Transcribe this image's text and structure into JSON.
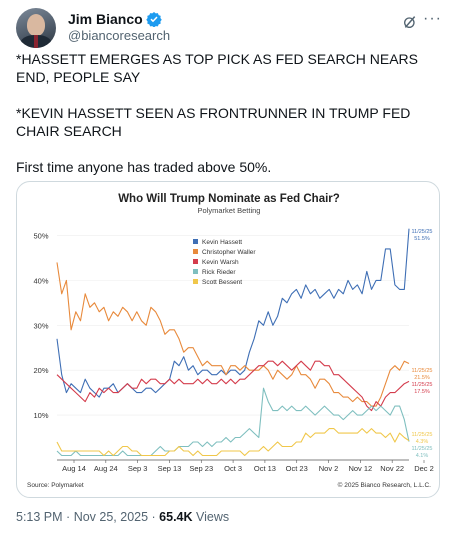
{
  "author": {
    "display_name": "Jim Bianco",
    "handle": "@biancoresearch"
  },
  "tweet": {
    "paragraphs": [
      "*HASSETT EMERGES AS TOP PICK AS FED SEARCH NEARS END, PEOPLE SAY",
      "*KEVIN HASSETT SEEN AS FRONTRUNNER IN TRUMP FED CHAIR SEARCH",
      "First time anyone has traded above 50%."
    ],
    "time": "5:13 PM",
    "date": "Nov 25, 2025",
    "views": "65.4K",
    "views_label": "Views"
  },
  "icons": {
    "verified": "verified-badge-icon",
    "grok": "grok-icon",
    "more": "more-icon"
  },
  "chart_data": {
    "type": "line",
    "title": "Who Will Trump Nominate as Fed Chair?",
    "subtitle": "Polymarket Betting",
    "source": "Source: Polymarket",
    "copyright": "© 2025 Bianco Research, L.L.C.",
    "y_ticks": [
      "10%",
      "20%",
      "30%",
      "40%",
      "50%"
    ],
    "x_ticks": [
      "Aug 14",
      "Aug 24",
      "Sep 3",
      "Sep 13",
      "Sep 23",
      "Oct 3",
      "Oct 13",
      "Oct 23",
      "Nov 2",
      "Nov 12",
      "Nov 22",
      "Dec 2"
    ],
    "ylim": [
      0,
      53
    ],
    "legend_position": "top-center",
    "series": [
      {
        "name": "Kevin Hassett",
        "color": "#3f6fb5",
        "values": [
          27,
          19,
          15,
          17,
          16,
          15,
          18,
          16,
          15,
          14,
          16,
          16,
          17,
          15,
          16,
          17,
          16,
          15,
          15,
          16,
          16,
          15,
          16,
          17,
          18,
          22,
          21,
          23,
          20,
          21,
          19,
          20,
          20,
          19,
          19,
          20,
          19,
          20,
          20,
          19,
          20,
          24,
          27,
          31,
          30,
          33,
          30,
          32,
          36,
          35,
          37,
          38,
          36,
          39,
          37,
          38,
          36,
          37,
          38,
          36,
          38,
          37,
          40,
          38,
          39,
          37,
          42,
          38,
          40,
          40,
          47,
          47,
          39,
          38,
          38,
          51.5
        ],
        "end_label": "51.5%",
        "end_date": "11/25/25"
      },
      {
        "name": "Christopher Waller",
        "color": "#e88a3c",
        "values": [
          44,
          37,
          40,
          29,
          33,
          31,
          37,
          34,
          35,
          33,
          34,
          31,
          33,
          32,
          34,
          33,
          31,
          33,
          31,
          30,
          34,
          33,
          31,
          28,
          29,
          29,
          27,
          24,
          25,
          25,
          23,
          21,
          22,
          21,
          21,
          21,
          19,
          21,
          21,
          20,
          21,
          20,
          20,
          20,
          21,
          20,
          18,
          20,
          19,
          18,
          19,
          21,
          19,
          19,
          18,
          16,
          18,
          18,
          17,
          15,
          15,
          14,
          14,
          13,
          14,
          13,
          13,
          12,
          12,
          14,
          17,
          20,
          21,
          20,
          22,
          21.5
        ],
        "end_label": "21.5%",
        "end_date": "11/25/25"
      },
      {
        "name": "Kevin Warsh",
        "color": "#d43c4c",
        "values": [
          19,
          18,
          17,
          16,
          15,
          14,
          13,
          15,
          14,
          16,
          15,
          16,
          15,
          15,
          16,
          17,
          16,
          16,
          18,
          17,
          18,
          18,
          17,
          17,
          18,
          17,
          18,
          17,
          17,
          17,
          18,
          17,
          18,
          17,
          17,
          18,
          17,
          18,
          17,
          18,
          18,
          19,
          20,
          21,
          21,
          22,
          22,
          21,
          22,
          21,
          20,
          21,
          22,
          21,
          20,
          22,
          22,
          21,
          21,
          19,
          19,
          18,
          17,
          16,
          15,
          14,
          12,
          11,
          13,
          12,
          14,
          15,
          15,
          16,
          17,
          17.5
        ],
        "end_label": "17.5%",
        "end_date": "11/25/25"
      },
      {
        "name": "Rick Rieder",
        "color": "#7fbfbf",
        "values": [
          2,
          1,
          1,
          1,
          2,
          1,
          1,
          1,
          1,
          1,
          1,
          1,
          1,
          1,
          2,
          1,
          1,
          1,
          1,
          1,
          1,
          2,
          3,
          2,
          2,
          2,
          3,
          3,
          3,
          4,
          4,
          3,
          4,
          3,
          4,
          4,
          5,
          4,
          5,
          5,
          6,
          7,
          6,
          5,
          16,
          13,
          11,
          11,
          12,
          11,
          12,
          11,
          11,
          12,
          11,
          10,
          11,
          12,
          11,
          10,
          10,
          9,
          10,
          11,
          10,
          10,
          11,
          12,
          11,
          12,
          11,
          10,
          12,
          12,
          9,
          4.1
        ],
        "end_label": "4.1%",
        "end_date": "11/25/25"
      },
      {
        "name": "Scott Bessent",
        "color": "#f0c74a",
        "values": [
          4,
          2,
          2,
          2,
          2,
          2,
          2,
          2,
          2,
          2,
          1,
          2,
          1,
          2,
          3,
          3,
          2,
          2,
          1,
          1,
          1,
          1,
          1,
          1,
          2,
          2,
          3,
          2,
          2,
          1,
          2,
          1,
          1,
          1,
          1,
          2,
          2,
          2,
          2,
          2,
          1,
          2,
          2,
          2,
          3,
          2,
          3,
          4,
          3,
          3,
          3,
          4,
          4,
          6,
          5,
          6,
          6,
          6,
          7,
          7,
          6,
          6,
          6,
          6,
          6,
          7,
          6,
          7,
          6,
          6,
          5,
          6,
          4,
          6,
          5,
          4.3
        ],
        "end_label": "4.3%",
        "end_date": "11/25/25"
      }
    ]
  }
}
